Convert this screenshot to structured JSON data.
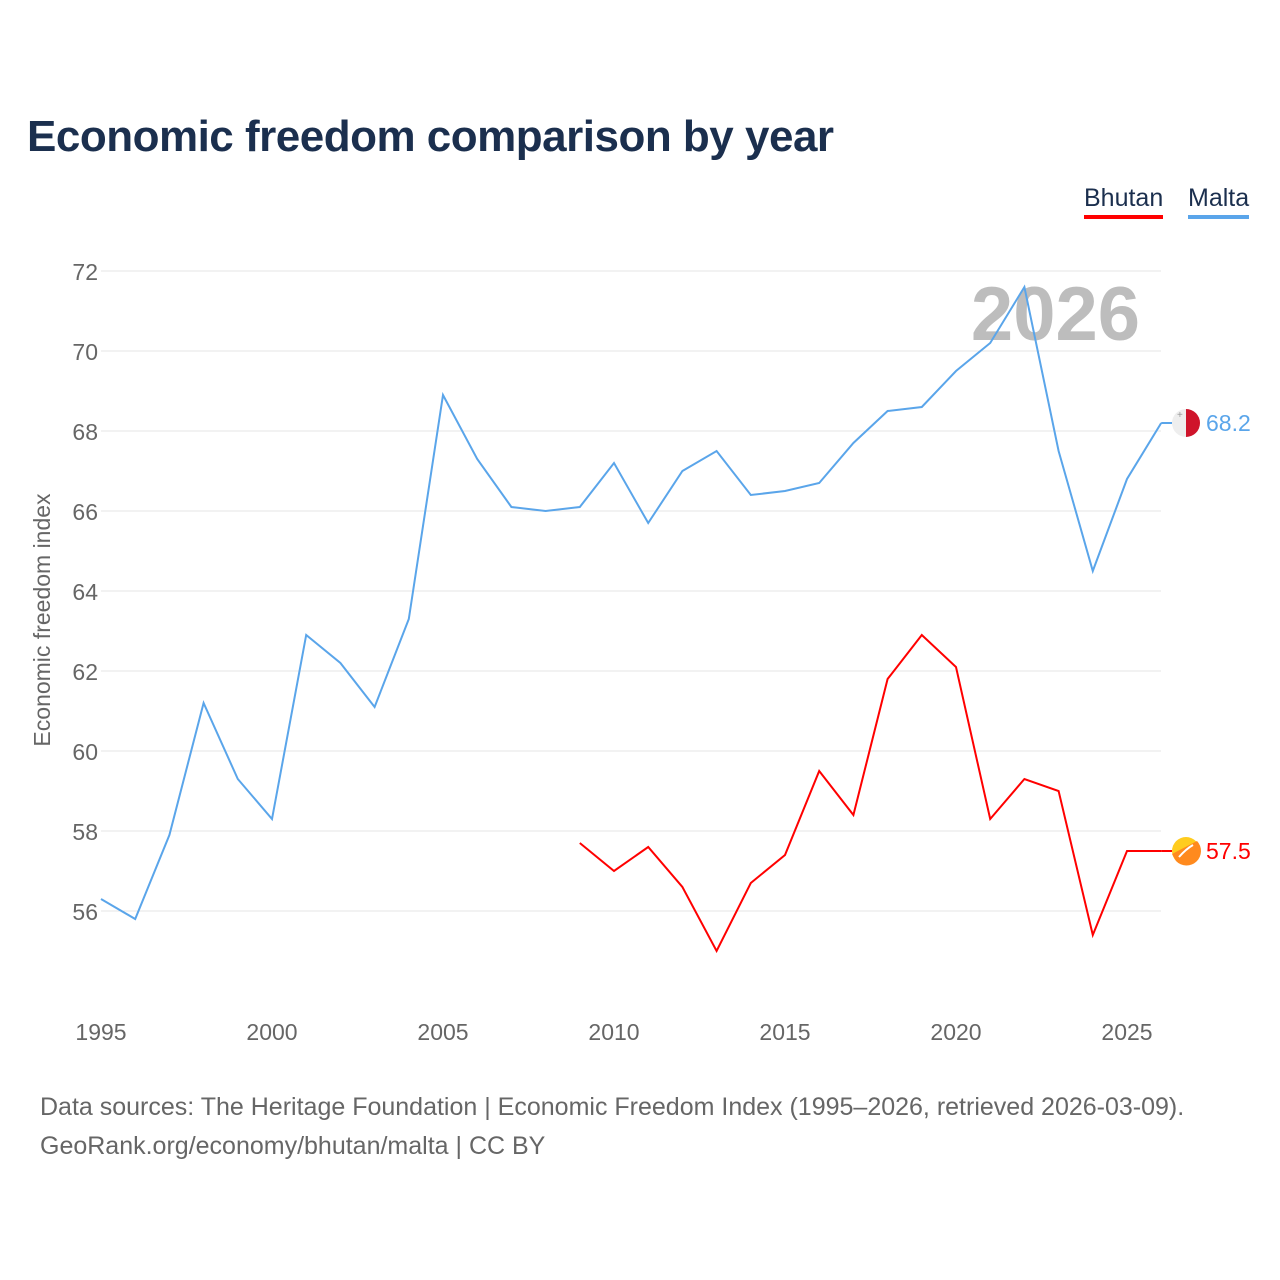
{
  "chart_data": {
    "type": "line",
    "title": "Economic freedom comparison by year",
    "ylabel": "Economic freedom index",
    "xlabel": "",
    "ylim": [
      54,
      72
    ],
    "xlim": [
      1995,
      2026
    ],
    "yticks": [
      56,
      58,
      60,
      62,
      64,
      66,
      68,
      70,
      72
    ],
    "xticks": [
      1995,
      2000,
      2005,
      2010,
      2015,
      2020,
      2025
    ],
    "grid": true,
    "legend_placement": "top-right",
    "year_watermark": "2026",
    "series": [
      {
        "name": "Bhutan",
        "color": "#ff0000",
        "end_label": "57.5",
        "flag": "bhutan-flag",
        "x": [
          2009,
          2010,
          2011,
          2012,
          2013,
          2014,
          2015,
          2016,
          2017,
          2018,
          2019,
          2020,
          2021,
          2022,
          2023,
          2024,
          2025,
          2026
        ],
        "values": [
          57.7,
          57.0,
          57.6,
          56.6,
          55.0,
          56.7,
          57.4,
          59.5,
          58.4,
          61.8,
          62.9,
          62.1,
          58.3,
          59.3,
          59.0,
          55.4,
          57.5,
          57.5
        ]
      },
      {
        "name": "Malta",
        "color": "#5aa5ea",
        "end_label": "68.2",
        "flag": "malta-flag",
        "x": [
          1995,
          1996,
          1997,
          1998,
          1999,
          2000,
          2001,
          2002,
          2003,
          2004,
          2005,
          2006,
          2007,
          2008,
          2009,
          2010,
          2011,
          2012,
          2013,
          2014,
          2015,
          2016,
          2017,
          2018,
          2019,
          2020,
          2021,
          2022,
          2023,
          2024,
          2025,
          2026
        ],
        "values": [
          56.3,
          55.8,
          57.9,
          61.2,
          59.3,
          58.3,
          62.9,
          62.2,
          61.1,
          63.3,
          68.9,
          67.3,
          66.1,
          66.0,
          66.1,
          67.2,
          65.7,
          67.0,
          67.5,
          66.4,
          66.5,
          66.7,
          67.7,
          68.5,
          68.6,
          69.5,
          70.2,
          71.6,
          67.5,
          64.5,
          66.8,
          68.2
        ]
      }
    ]
  },
  "source": {
    "line1": "Data sources: The Heritage Foundation | Economic Freedom Index (1995–2026, retrieved 2026-03-09).",
    "line2": "GeoRank.org/economy/bhutan/malta | CC BY"
  }
}
